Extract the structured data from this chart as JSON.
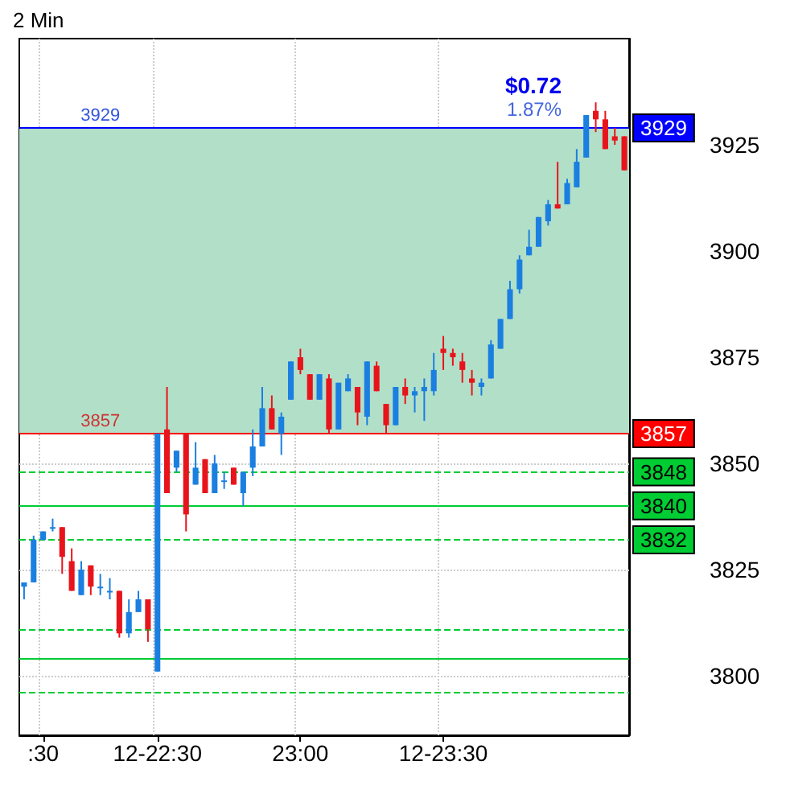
{
  "chart_data": {
    "type": "candlestick",
    "title": "2 Min",
    "categories": [
      null,
      null,
      ":30",
      null,
      null,
      null,
      null,
      null,
      null,
      null,
      null,
      null,
      null,
      null,
      "12-22:30",
      null,
      null,
      null,
      null,
      null,
      null,
      null,
      null,
      null,
      null,
      null,
      null,
      null,
      null,
      "23:00",
      null,
      null,
      null,
      null,
      null,
      null,
      null,
      null,
      null,
      null,
      null,
      null,
      null,
      null,
      "12-23:30",
      null,
      null,
      null,
      null,
      null,
      null,
      null,
      null,
      null,
      null,
      null,
      null,
      null,
      null,
      null,
      null,
      null,
      null,
      null
    ],
    "ohlc": [
      [
        3821,
        3822,
        3818,
        3822
      ],
      [
        3822,
        3833,
        3822,
        3832
      ],
      [
        3832,
        3834,
        3832,
        3834
      ],
      [
        3835,
        3837,
        3834,
        3835
      ],
      [
        3835,
        3835,
        3824,
        3828
      ],
      [
        3827,
        3830,
        3820,
        3820
      ],
      [
        3819,
        3827,
        3819,
        3825
      ],
      [
        3826,
        3826,
        3819,
        3821
      ],
      [
        3821,
        3824,
        3819,
        3821
      ],
      [
        3820,
        3823,
        3818,
        3820
      ],
      [
        3820,
        3820,
        3809,
        3810
      ],
      [
        3810,
        3818,
        3809,
        3815
      ],
      [
        3815,
        3820,
        3815,
        3818
      ],
      [
        3818,
        3818,
        3808,
        3811
      ],
      [
        3801,
        3857,
        3801,
        3857
      ],
      [
        3858,
        3868,
        3843,
        3843
      ],
      [
        3849,
        3853,
        3848,
        3853
      ],
      [
        3857,
        3857,
        3834,
        3838
      ],
      [
        3845,
        3855,
        3845,
        3849
      ],
      [
        3851,
        3851,
        3843,
        3843
      ],
      [
        3843,
        3852,
        3843,
        3850
      ],
      [
        3846,
        3848,
        3844,
        3846
      ],
      [
        3849,
        3849,
        3845,
        3845
      ],
      [
        3843,
        3848,
        3840,
        3848
      ],
      [
        3849,
        3858,
        3847,
        3854
      ],
      [
        3854,
        3868,
        3854,
        3863
      ],
      [
        3863,
        3866,
        3858,
        3858
      ],
      [
        3857,
        3862,
        3852,
        3861
      ],
      [
        3865,
        3874,
        3865,
        3874
      ],
      [
        3875,
        3877,
        3871,
        3872
      ],
      [
        3871,
        3871,
        3865,
        3865
      ],
      [
        3865,
        3871,
        3865,
        3871
      ],
      [
        3870,
        3871,
        3857,
        3858
      ],
      [
        3858,
        3869,
        3858,
        3869
      ],
      [
        3867,
        3871,
        3867,
        3870
      ],
      [
        3868,
        3868,
        3859,
        3862
      ],
      [
        3861,
        3874,
        3859,
        3874
      ],
      [
        3873,
        3874,
        3867,
        3867
      ],
      [
        3864,
        3864,
        3857,
        3859
      ],
      [
        3859,
        3868,
        3859,
        3868
      ],
      [
        3868,
        3870,
        3864,
        3866
      ],
      [
        3866,
        3868,
        3862,
        3867
      ],
      [
        3867,
        3870,
        3860,
        3868
      ],
      [
        3867,
        3876,
        3866,
        3872
      ],
      [
        3877,
        3880,
        3872,
        3876
      ],
      [
        3876,
        3877,
        3873,
        3875
      ],
      [
        3874,
        3876,
        3869,
        3872
      ],
      [
        3870,
        3872,
        3866,
        3869
      ],
      [
        3868,
        3870,
        3866,
        3869
      ],
      [
        3870,
        3879,
        3870,
        3878
      ],
      [
        3877,
        3884,
        3877,
        3884
      ],
      [
        3884,
        3893,
        3884,
        3891
      ],
      [
        3891,
        3899,
        3890,
        3898
      ],
      [
        3899,
        3905,
        3899,
        3901
      ],
      [
        3901,
        3908,
        3901,
        3908
      ],
      [
        3907,
        3912,
        3906,
        3911
      ],
      [
        3911,
        3921,
        3910,
        3910
      ],
      [
        3911,
        3917,
        3911,
        3916
      ],
      [
        3915,
        3924,
        3915,
        3921
      ],
      [
        3922,
        3932,
        3922,
        3932
      ],
      [
        3933,
        3935,
        3928,
        3931
      ],
      [
        3931,
        3933,
        3924,
        3924
      ],
      [
        3927,
        3929,
        3925,
        3926
      ],
      [
        3927,
        3927,
        3919,
        3919
      ]
    ],
    "colors": [
      "#1a7fe0",
      "#1a7fe0",
      "#1a7fe0",
      "#1a7fe0",
      "#e8141c",
      "#e8141c",
      "#1a7fe0",
      "#e8141c",
      "#1a7fe0",
      "#1a7fe0",
      "#e8141c",
      "#1a7fe0",
      "#1a7fe0",
      "#e8141c",
      "#1a7fe0",
      "#e8141c",
      "#1a7fe0",
      "#e8141c",
      "#1a7fe0",
      "#e8141c",
      "#1a7fe0",
      "#1a7fe0",
      "#e8141c",
      "#1a7fe0",
      "#1a7fe0",
      "#1a7fe0",
      "#e8141c",
      "#1a7fe0",
      "#1a7fe0",
      "#e8141c",
      "#e8141c",
      "#1a7fe0",
      "#e8141c",
      "#1a7fe0",
      "#1a7fe0",
      "#e8141c",
      "#1a7fe0",
      "#e8141c",
      "#e8141c",
      "#1a7fe0",
      "#e8141c",
      "#1a7fe0",
      "#1a7fe0",
      "#1a7fe0",
      "#e8141c",
      "#e8141c",
      "#e8141c",
      "#e8141c",
      "#1a7fe0",
      "#1a7fe0",
      "#1a7fe0",
      "#1a7fe0",
      "#1a7fe0",
      "#1a7fe0",
      "#1a7fe0",
      "#1a7fe0",
      "#e8141c",
      "#1a7fe0",
      "#1a7fe0",
      "#1a7fe0",
      "#e8141c",
      "#e8141c",
      "#e8141c",
      "#e8141c"
    ],
    "ylim": [
      3786,
      3950
    ],
    "yticks": [
      3800,
      3825,
      3850,
      3875,
      3900,
      3925
    ],
    "grid": true,
    "ref_lines": [
      {
        "axis": "y",
        "value": 3929,
        "label": "3929",
        "color": "#0000ff",
        "line_style": "solid"
      },
      {
        "axis": "y",
        "value": 3857,
        "label": "3857",
        "color": "#ff0000",
        "line_style": "solid"
      },
      {
        "axis": "y",
        "value": 3848,
        "label": "3848",
        "color": "#00cc33",
        "line_style": "dashed"
      },
      {
        "axis": "y",
        "value": 3840,
        "label": "3840",
        "color": "#00cc33",
        "line_style": "solid"
      },
      {
        "axis": "y",
        "value": 3832,
        "label": "3832",
        "color": "#00cc33",
        "line_style": "dashed"
      },
      {
        "axis": "y",
        "value": 3811,
        "label": null,
        "color": "#00cc33",
        "line_style": "dashed"
      },
      {
        "axis": "y",
        "value": 3804,
        "label": null,
        "color": "#00cc33",
        "line_style": "solid"
      },
      {
        "axis": "y",
        "value": 3796,
        "label": null,
        "color": "#00cc33",
        "line_style": "dashed"
      }
    ],
    "bands": [
      {
        "axis": "y",
        "from": 3857,
        "to": 3929,
        "label": null,
        "color": "#b2dfc8"
      }
    ],
    "annotations": [
      {
        "text": "3929",
        "y": 3929
      },
      {
        "text": "3857",
        "y": 3857
      },
      "$0.72",
      "1.87%"
    ]
  }
}
